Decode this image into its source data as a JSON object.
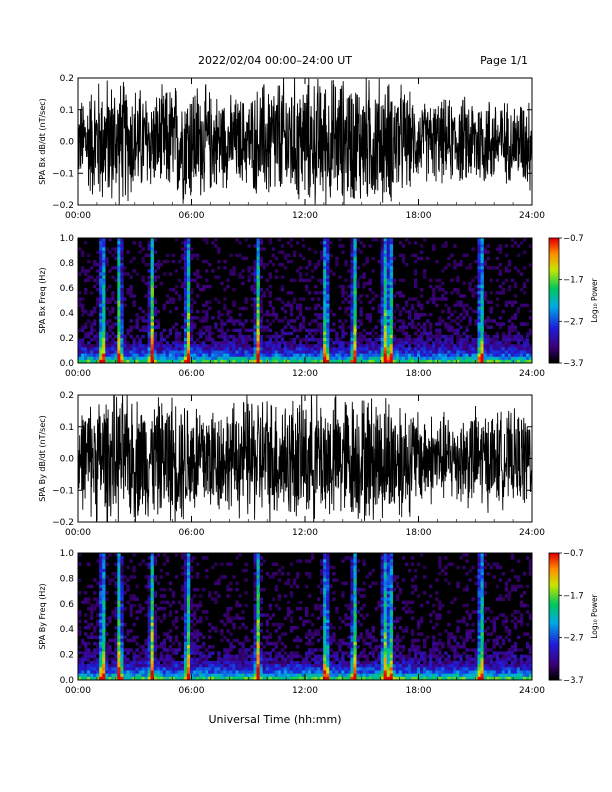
{
  "header": {
    "title": "2022/02/04  00:00–24:00 UT",
    "page": "Page 1/1"
  },
  "footer": {
    "xlabel": "Universal Time (hh:mm)"
  },
  "colors": {
    "trace": "#000000",
    "spec_background": "#000000"
  },
  "chart_data": [
    {
      "type": "line",
      "ylabel": "SPA Bx dB/dt (nT/sec)",
      "ylim": [
        -0.2,
        0.2
      ],
      "xlim_hours": [
        0,
        24
      ],
      "yticks": [
        "0.2",
        "0.1",
        "0.0",
        "−0.1",
        "−0.2"
      ],
      "xticks": [
        "00:00",
        "06:00",
        "12:00",
        "18:00",
        "24:00"
      ],
      "series": [
        {
          "hours": [
            0,
            1,
            2,
            3,
            4,
            5,
            6,
            7,
            8,
            9,
            10,
            11,
            12,
            13,
            14,
            15,
            16,
            17,
            18,
            19,
            20,
            21,
            22,
            23,
            24
          ],
          "amplitude": [
            0.12,
            0.2,
            0.2,
            0.18,
            0.15,
            0.18,
            0.2,
            0.16,
            0.14,
            0.14,
            0.2,
            0.2,
            0.2,
            0.2,
            0.2,
            0.2,
            0.2,
            0.18,
            0.12,
            0.13,
            0.13,
            0.15,
            0.14,
            0.12,
            0.16
          ]
        }
      ]
    },
    {
      "type": "heatmap",
      "ylabel": "SPA Bx Freq (Hz)",
      "ylim": [
        0.0,
        1.0
      ],
      "xlim_hours": [
        0,
        24
      ],
      "yticks": [
        "1.0",
        "0.8",
        "0.6",
        "0.4",
        "0.2",
        "0.0"
      ],
      "xticks": [
        "00:00",
        "06:00",
        "12:00",
        "18:00",
        "24:00"
      ],
      "colorbar": {
        "label": "Log₁₀ Power",
        "ticks": [
          "−0.7",
          "−1.7",
          "−2.7",
          "−3.7"
        ],
        "range": [
          -3.7,
          -0.7
        ]
      },
      "bright_bands_hours": [
        1.3,
        2.2,
        3.9,
        5.8,
        9.5,
        13.1,
        14.6,
        16.2,
        16.5,
        21.3
      ]
    },
    {
      "type": "line",
      "ylabel": "SPA By dB/dt (nT/sec)",
      "ylim": [
        -0.2,
        0.2
      ],
      "xlim_hours": [
        0,
        24
      ],
      "yticks": [
        "0.2",
        "0.1",
        "0.0",
        "−0.1",
        "−0.2"
      ],
      "xticks": [
        "00:00",
        "06:00",
        "12:00",
        "18:00",
        "24:00"
      ],
      "series": [
        {
          "hours": [
            0,
            1,
            2,
            3,
            4,
            5,
            6,
            7,
            8,
            9,
            10,
            11,
            12,
            13,
            14,
            15,
            16,
            17,
            18,
            19,
            20,
            21,
            22,
            23,
            24
          ],
          "amplitude": [
            0.14,
            0.2,
            0.2,
            0.2,
            0.18,
            0.2,
            0.2,
            0.18,
            0.16,
            0.2,
            0.2,
            0.2,
            0.2,
            0.2,
            0.2,
            0.2,
            0.2,
            0.2,
            0.15,
            0.14,
            0.14,
            0.16,
            0.15,
            0.14,
            0.16
          ]
        }
      ]
    },
    {
      "type": "heatmap",
      "ylabel": "SPA By Freq (Hz)",
      "ylim": [
        0.0,
        1.0
      ],
      "xlim_hours": [
        0,
        24
      ],
      "yticks": [
        "1.0",
        "0.8",
        "0.6",
        "0.4",
        "0.2",
        "0.0"
      ],
      "xticks": [
        "00:00",
        "06:00",
        "12:00",
        "18:00",
        "24:00"
      ],
      "colorbar": {
        "label": "Log₁₀ Power",
        "ticks": [
          "−0.7",
          "−1.7",
          "−2.7",
          "−3.7"
        ],
        "range": [
          -3.7,
          -0.7
        ]
      },
      "bright_bands_hours": [
        1.3,
        2.2,
        3.9,
        5.8,
        9.5,
        13.1,
        14.6,
        16.2,
        16.5,
        21.3
      ]
    }
  ]
}
